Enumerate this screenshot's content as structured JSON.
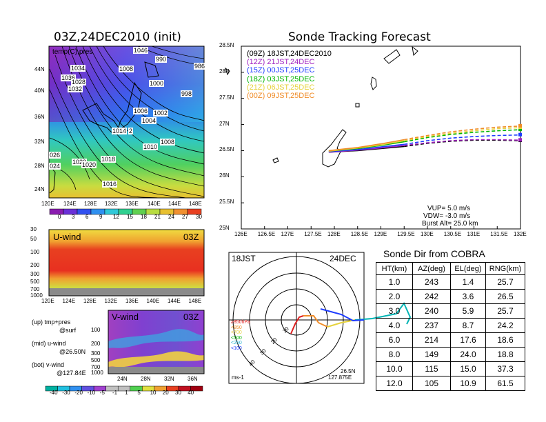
{
  "left": {
    "map_title": "03Z,24DEC2010 (init)",
    "map_inset_label": "temp(C),pres",
    "map_lat_ticks": [
      "44N",
      "40N",
      "36N",
      "32N",
      "28N",
      "24N"
    ],
    "map_lon_ticks": [
      "120E",
      "124E",
      "128E",
      "132E",
      "136E",
      "140E",
      "144E",
      "148E"
    ],
    "pressure_labels": [
      "1046",
      "990",
      "986",
      "1034",
      "1008",
      "1036",
      "1028",
      "1032",
      "1000",
      "998",
      "1006",
      "1002",
      "1004",
      "1014",
      "2",
      "1010",
      "1008",
      "1018",
      "1022",
      "1020",
      "026",
      "024",
      "1016"
    ],
    "temp_colorbar": [
      "0",
      "3",
      "6",
      "9",
      "12",
      "15",
      "18",
      "21",
      "24",
      "27",
      "30"
    ],
    "u_panel": {
      "name": "U-wind",
      "time": "03Z",
      "y_ticks": [
        "30",
        "50",
        "100",
        "200",
        "300",
        "500",
        "700",
        "1000"
      ],
      "x_ticks": [
        "120E",
        "124E",
        "128E",
        "132E",
        "136E",
        "140E",
        "144E",
        "148E"
      ]
    },
    "v_panel": {
      "name": "V-wind",
      "time": "03Z",
      "y_ticks": [
        "100",
        "200",
        "300",
        "500",
        "700",
        "1000"
      ],
      "x_ticks": [
        "24N",
        "28N",
        "32N",
        "36N"
      ]
    },
    "legend_notes": [
      "(up) tmp+pres",
      "@surf",
      "(mid) u-wind",
      "@26.50N",
      "(bot) v-wind",
      "@127.84E"
    ],
    "wind_colorbar": [
      "-40",
      "-30",
      "-20",
      "-10",
      "-5",
      "-1",
      "1",
      "5",
      "10",
      "20",
      "30",
      "40"
    ]
  },
  "chart_data": {
    "type": "line",
    "title": "Sonde Tracking Forecast",
    "xlim": [
      126,
      132
    ],
    "ylim": [
      25,
      28.5
    ],
    "x_ticks": [
      "126E",
      "126.5E",
      "127E",
      "127.5E",
      "128E",
      "128.5E",
      "129E",
      "129.5E",
      "130E",
      "130.5E",
      "131E",
      "131.5E",
      "132E"
    ],
    "y_ticks": [
      "25N",
      "25.5N",
      "26N",
      "26.5N",
      "27N",
      "27.5N",
      "28N",
      "28.5N"
    ],
    "series": [
      {
        "name": "(09Z) 18JST,24DEC2010",
        "color": "#000000",
        "x": [
          127.88,
          128.5,
          129.0,
          129.5,
          130.0,
          130.5,
          131.0,
          131.5,
          132.0
        ],
        "y": [
          26.47,
          26.5,
          26.54,
          26.58,
          26.64,
          26.68,
          26.7,
          26.7,
          26.69
        ]
      },
      {
        "name": "(12Z) 21JST,24DEC",
        "color": "#a020c0",
        "x": [
          127.88,
          128.5,
          129.0,
          129.5,
          130.0,
          130.5,
          131.0,
          131.5,
          132.0
        ],
        "y": [
          26.47,
          26.51,
          26.55,
          26.6,
          26.65,
          26.69,
          26.71,
          26.71,
          26.7
        ]
      },
      {
        "name": "(15Z) 00JST,25DEC",
        "color": "#1e3cff",
        "x": [
          127.88,
          128.5,
          129.0,
          129.5,
          130.0,
          130.5,
          131.0,
          131.5,
          132.0
        ],
        "y": [
          26.48,
          26.52,
          26.57,
          26.62,
          26.69,
          26.74,
          26.77,
          26.79,
          26.8
        ]
      },
      {
        "name": "(18Z) 03JST,25DEC",
        "color": "#00b400",
        "x": [
          127.88,
          128.5,
          129.0,
          129.5,
          130.0,
          130.5,
          131.0,
          131.5,
          132.0
        ],
        "y": [
          26.49,
          26.54,
          26.6,
          26.67,
          26.75,
          26.81,
          26.85,
          26.88,
          26.9
        ]
      },
      {
        "name": "(21Z) 06JST,25DEC",
        "color": "#e6d23c",
        "x": [
          127.88,
          128.5,
          129.0,
          129.5,
          130.0,
          130.5,
          131.0,
          131.5,
          132.0
        ],
        "y": [
          26.49,
          26.55,
          26.61,
          26.69,
          26.77,
          26.83,
          26.88,
          26.92,
          26.94
        ]
      },
      {
        "name": "(00Z) 09JST,25DEC",
        "color": "#f08c28",
        "x": [
          127.88,
          128.5,
          129.0,
          129.5,
          130.0,
          130.5,
          131.0,
          131.5,
          132.0
        ],
        "y": [
          26.5,
          26.56,
          26.63,
          26.71,
          26.79,
          26.86,
          26.91,
          26.95,
          26.97
        ]
      }
    ],
    "annotations": [
      "VUP= 5.0 m/s",
      "VDW= -3.0 m/s",
      "Burst Alt= 25.0 km"
    ]
  },
  "polar": {
    "time_label": "18JST",
    "date_label": "24DEC",
    "pos_lat": "26.5N",
    "pos_lon": "127.875E",
    "unit": "ms-1",
    "ring_labels": [
      "10",
      "20",
      "30",
      "40"
    ],
    "height_labels": [
      {
        "text": "≥850hPa",
        "color": "#e02020"
      },
      {
        "text": "<850",
        "color": "#f08c28"
      },
      {
        "text": "<700",
        "color": "#e6d23c"
      },
      {
        "text": "<500",
        "color": "#00b400"
      },
      {
        "text": "<250",
        "color": "#20b0d0"
      },
      {
        "text": "<100",
        "color": "#1e3cff"
      }
    ]
  },
  "table": {
    "title": "Sonde Dir from COBRA",
    "headers": [
      "HT(km)",
      "AZ(deg)",
      "EL(deg)",
      "RNG(km)"
    ],
    "rows": [
      [
        "1.0",
        "243",
        "1.4",
        "25.7"
      ],
      [
        "2.0",
        "242",
        "3.6",
        "26.5"
      ],
      [
        "3.0",
        "240",
        "5.9",
        "25.7"
      ],
      [
        "4.0",
        "237",
        "8.7",
        "24.2"
      ],
      [
        "6.0",
        "214",
        "17.6",
        "18.6"
      ],
      [
        "8.0",
        "149",
        "24.0",
        "18.8"
      ],
      [
        "10.0",
        "115",
        "15.0",
        "37.3"
      ],
      [
        "12.0",
        "105",
        "10.9",
        "61.5"
      ]
    ]
  }
}
